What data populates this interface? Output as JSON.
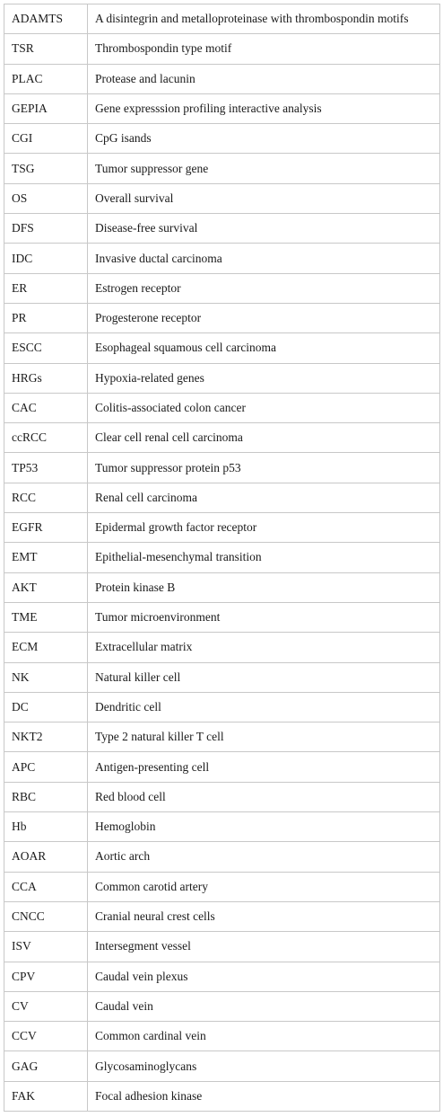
{
  "rows": [
    {
      "abbr": "ADAMTS",
      "meaning": "A disintegrin and metalloproteinase with thrombospondin motifs"
    },
    {
      "abbr": "TSR",
      "meaning": "Thrombospondin type motif"
    },
    {
      "abbr": "PLAC",
      "meaning": "Protease and lacunin"
    },
    {
      "abbr": "GEPIA",
      "meaning": "Gene expresssion profiling interactive analysis"
    },
    {
      "abbr": "CGI",
      "meaning": "CpG isands"
    },
    {
      "abbr": "TSG",
      "meaning": "Tumor suppressor gene"
    },
    {
      "abbr": "OS",
      "meaning": "Overall survival"
    },
    {
      "abbr": "DFS",
      "meaning": "Disease-free survival"
    },
    {
      "abbr": "IDC",
      "meaning": "Invasive ductal carcinoma"
    },
    {
      "abbr": "ER",
      "meaning": "Estrogen receptor"
    },
    {
      "abbr": "PR",
      "meaning": "Progesterone receptor"
    },
    {
      "abbr": "ESCC",
      "meaning": "Esophageal squamous cell carcinoma"
    },
    {
      "abbr": "HRGs",
      "meaning": "Hypoxia-related genes"
    },
    {
      "abbr": "CAC",
      "meaning": "Colitis-associated colon cancer"
    },
    {
      "abbr": "ccRCC",
      "meaning": "Clear cell renal cell carcinoma"
    },
    {
      "abbr": "TP53",
      "meaning": "Tumor suppressor protein p53"
    },
    {
      "abbr": "RCC",
      "meaning": "Renal cell carcinoma"
    },
    {
      "abbr": "EGFR",
      "meaning": "Epidermal growth factor receptor"
    },
    {
      "abbr": "EMT",
      "meaning": "Epithelial-mesenchymal transition"
    },
    {
      "abbr": "AKT",
      "meaning": "Protein kinase B"
    },
    {
      "abbr": "TME",
      "meaning": "Tumor microenvironment"
    },
    {
      "abbr": "ECM",
      "meaning": "Extracellular matrix"
    },
    {
      "abbr": "NK",
      "meaning": "Natural killer cell"
    },
    {
      "abbr": "DC",
      "meaning": "Dendritic cell"
    },
    {
      "abbr": "NKT2",
      "meaning": "Type 2 natural killer T cell"
    },
    {
      "abbr": "APC",
      "meaning": "Antigen-presenting cell"
    },
    {
      "abbr": "RBC",
      "meaning": "Red blood cell"
    },
    {
      "abbr": "Hb",
      "meaning": "Hemoglobin"
    },
    {
      "abbr": "AOAR",
      "meaning": "Aortic arch"
    },
    {
      "abbr": "CCA",
      "meaning": "Common carotid artery"
    },
    {
      "abbr": "CNCC",
      "meaning": "Cranial neural crest cells"
    },
    {
      "abbr": "ISV",
      "meaning": "Intersegment vessel"
    },
    {
      "abbr": "CPV",
      "meaning": "Caudal vein plexus"
    },
    {
      "abbr": "CV",
      "meaning": "Caudal vein"
    },
    {
      "abbr": "CCV",
      "meaning": "Common cardinal vein"
    },
    {
      "abbr": "GAG",
      "meaning": "Glycosaminoglycans"
    },
    {
      "abbr": "FAK",
      "meaning": "Focal adhesion kinase"
    }
  ]
}
